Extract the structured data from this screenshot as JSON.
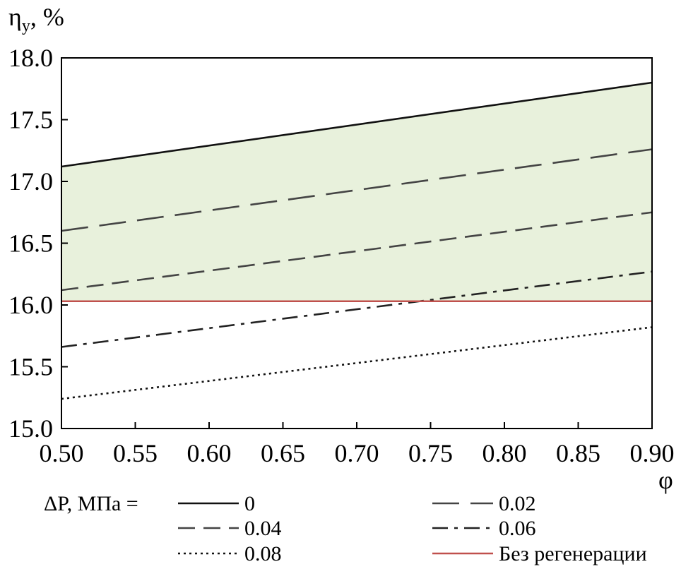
{
  "chart_data": {
    "type": "line",
    "ylabel": "η",
    "ylabel_sub": "у",
    "ylabel_unit": ", %",
    "xlabel": "φ",
    "xlim": [
      0.5,
      0.9
    ],
    "ylim": [
      15.0,
      18.0
    ],
    "x_ticks": [
      0.5,
      0.55,
      0.6,
      0.65,
      0.7,
      0.75,
      0.8,
      0.85,
      0.9
    ],
    "x_tick_labels": [
      "0.50",
      "0.55",
      "0.60",
      "0.65",
      "0.70",
      "0.75",
      "0.80",
      "0.85",
      "0.90"
    ],
    "y_ticks": [
      15.0,
      15.5,
      16.0,
      16.5,
      17.0,
      17.5,
      18.0
    ],
    "y_tick_labels": [
      "15.0",
      "15.5",
      "16.0",
      "16.5",
      "17.0",
      "17.5",
      "18.0"
    ],
    "grid": false,
    "legend_title": "ΔP, МПа =",
    "legend_placement": "bottom",
    "shaded_region": {
      "color": "#e8f1dc",
      "between": [
        "0",
        "Без регенерации"
      ]
    },
    "series": [
      {
        "name": "0",
        "style": "solid",
        "color": "#111111",
        "x": [
          0.5,
          0.9
        ],
        "y": [
          17.12,
          17.8
        ]
      },
      {
        "name": "0.02",
        "style": "long-dash",
        "color": "#444444",
        "x": [
          0.5,
          0.9
        ],
        "y": [
          16.6,
          17.26
        ]
      },
      {
        "name": "0.04",
        "style": "dash",
        "color": "#444444",
        "x": [
          0.5,
          0.9
        ],
        "y": [
          16.12,
          16.75
        ]
      },
      {
        "name": "0.06",
        "style": "dash-dot",
        "color": "#222222",
        "x": [
          0.5,
          0.9
        ],
        "y": [
          15.66,
          16.27
        ]
      },
      {
        "name": "0.08",
        "style": "dotted",
        "color": "#111111",
        "x": [
          0.5,
          0.9
        ],
        "y": [
          15.24,
          15.82
        ]
      },
      {
        "name": "Без регенерации",
        "style": "solid",
        "color": "#c0504d",
        "x": [
          0.5,
          0.9
        ],
        "y": [
          16.03,
          16.03
        ]
      }
    ]
  }
}
